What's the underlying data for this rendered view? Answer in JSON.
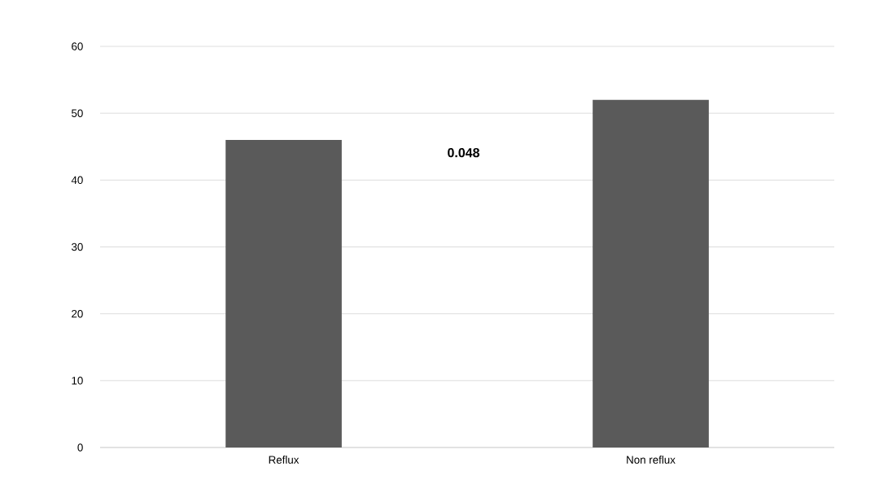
{
  "chart_data": {
    "type": "bar",
    "categories": [
      "Reflux",
      "Non reflux"
    ],
    "values": [
      46,
      52
    ],
    "color": "#5a5a5a",
    "ylim": [
      0,
      60
    ],
    "yticks": [
      0,
      10,
      20,
      30,
      40,
      50,
      60
    ],
    "grid": "y",
    "annotations": [
      "0.048"
    ]
  }
}
